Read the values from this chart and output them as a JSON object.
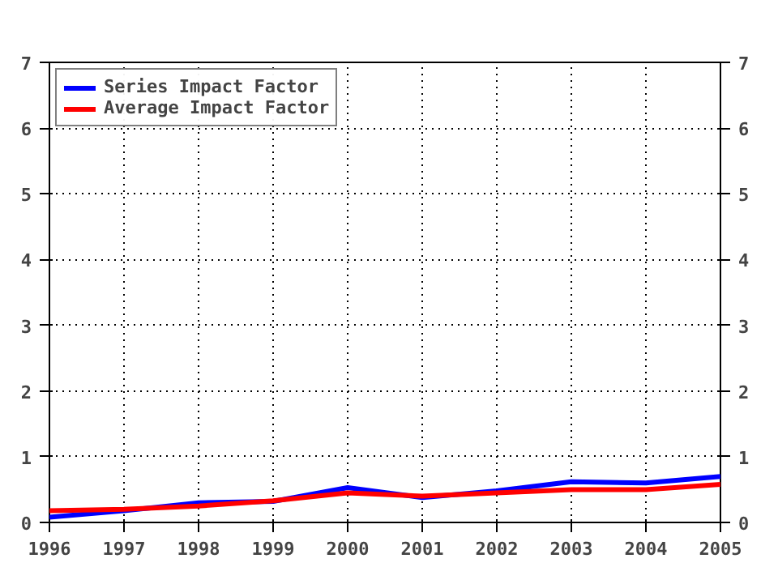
{
  "chart_data": {
    "type": "line",
    "x": [
      1996,
      1997,
      1998,
      1999,
      2000,
      2001,
      2002,
      2003,
      2004,
      2005
    ],
    "series": [
      {
        "name": "Series Impact Factor",
        "color": "#0000ff",
        "values": [
          0.08,
          0.18,
          0.3,
          0.32,
          0.53,
          0.38,
          0.48,
          0.62,
          0.6,
          0.7
        ]
      },
      {
        "name": "Average Impact Factor",
        "color": "#ff0000",
        "values": [
          0.18,
          0.2,
          0.25,
          0.33,
          0.45,
          0.4,
          0.45,
          0.5,
          0.5,
          0.58
        ]
      }
    ],
    "xlim": [
      1996,
      2005
    ],
    "xticks": [
      1996,
      1997,
      1998,
      1999,
      2000,
      2001,
      2002,
      2003,
      2004,
      2005
    ],
    "ylim": [
      0,
      7
    ],
    "yticks": [
      0,
      1,
      2,
      3,
      4,
      5,
      6,
      7
    ],
    "y2lim": [
      0,
      7
    ],
    "y2ticks": [
      0,
      1,
      2,
      3,
      4,
      5,
      6,
      7
    ],
    "grid": true,
    "legend": "top left",
    "line_style": "solid",
    "marker": "none"
  }
}
